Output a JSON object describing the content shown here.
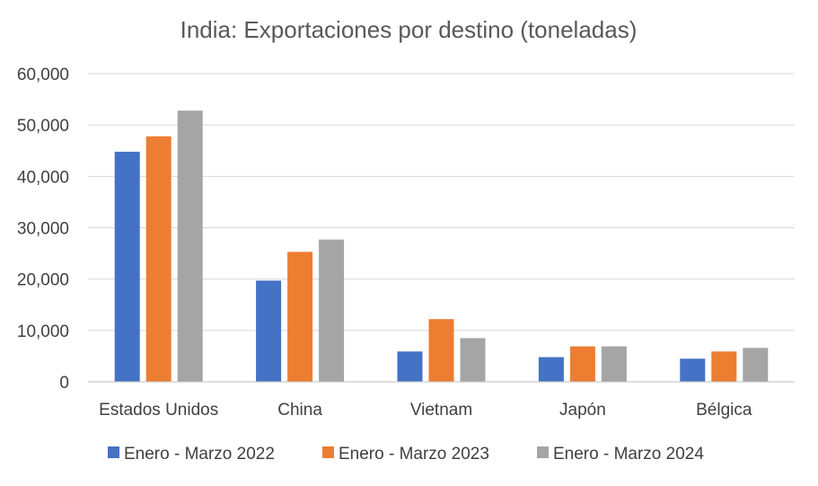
{
  "chart_data": {
    "type": "bar",
    "title": "India: Exportaciones por destino (toneladas)",
    "xlabel": "",
    "ylabel": "",
    "ylim": [
      0,
      60000
    ],
    "yticks": [
      0,
      10000,
      20000,
      30000,
      40000,
      50000,
      60000
    ],
    "ytick_labels": [
      "0",
      "10,000",
      "20,000",
      "30,000",
      "40,000",
      "50,000",
      "60,000"
    ],
    "grid": true,
    "legend_position": "bottom",
    "categories": [
      "Estados Unidos",
      "China",
      "Vietnam",
      "Japón",
      "Bélgica"
    ],
    "series": [
      {
        "name": "Enero - Marzo 2022",
        "color": "#4472c4",
        "values": [
          44800,
          19700,
          5900,
          4800,
          4500
        ]
      },
      {
        "name": "Enero - Marzo 2023",
        "color": "#ed7d31",
        "values": [
          47800,
          25300,
          12200,
          6900,
          5900
        ]
      },
      {
        "name": "Enero - Marzo 2024",
        "color": "#a5a5a5",
        "values": [
          52800,
          27700,
          8500,
          6900,
          6600
        ]
      }
    ]
  }
}
